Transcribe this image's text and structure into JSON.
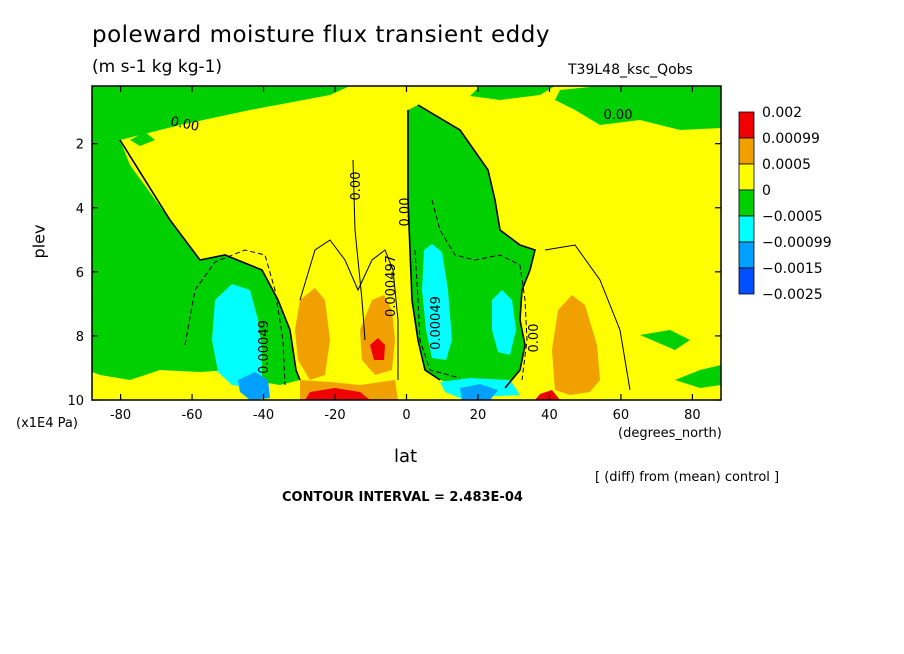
{
  "chart_data": {
    "type": "heatmap",
    "title": "poleward moisture flux transient eddy",
    "units": "(m s-1 kg kg-1)",
    "run_label": "T39L48_ksc_Qobs",
    "xlabel": "lat",
    "x_units": "(degrees_north)",
    "ylabel": "plev",
    "y_units": "(x1E4 Pa)",
    "xlim": [
      -88,
      88
    ],
    "ylim": [
      10,
      0.2
    ],
    "x_ticks": [
      "-80",
      "-60",
      "-40",
      "-20",
      "0",
      "20",
      "40",
      "60",
      "80"
    ],
    "y_ticks": [
      "2",
      "4",
      "6",
      "8",
      "10"
    ],
    "legend": {
      "labels": [
        "0.002",
        "0.00099",
        "0.0005",
        "0",
        "−0.0005",
        "−0.00099",
        "−0.0015",
        "−0.0025"
      ],
      "colors": [
        "#f00000",
        "#f0a000",
        "#ffff00",
        "#00d000",
        "#00ffff",
        "#00a0ff",
        "#0050ff"
      ]
    },
    "contour_labels": [
      "0.00",
      "0.00",
      "0.00",
      "0.00",
      "0.000497",
      "0.00049",
      "0.00",
      "0.00049"
    ],
    "footer_note": "[ (diff) from (mean) control ]",
    "contour_interval": "CONTOUR INTERVAL = 2.483E-04"
  }
}
